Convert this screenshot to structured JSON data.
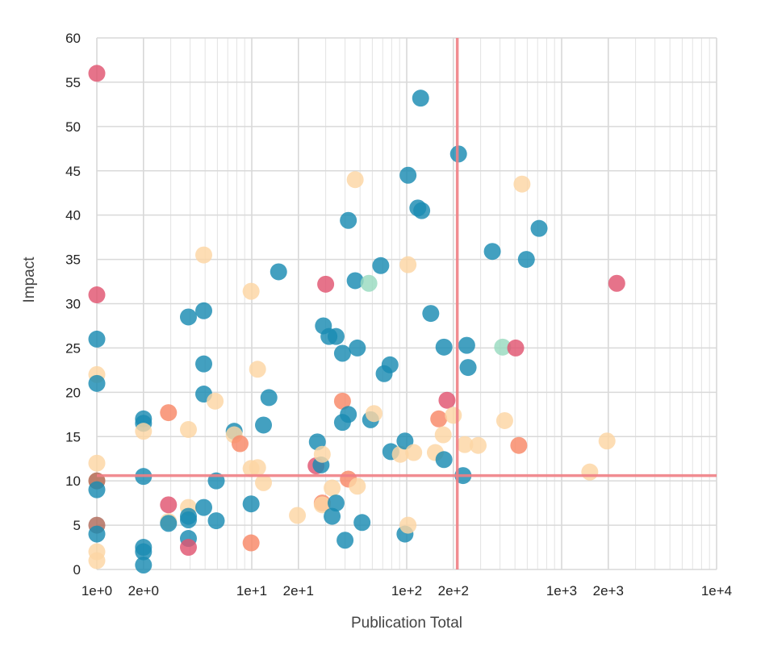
{
  "chart_data": {
    "type": "scatter",
    "xlabel": "Publication Total",
    "ylabel": "Impact",
    "x_scale": "log",
    "xlim": [
      1,
      10000
    ],
    "ylim": [
      0,
      60
    ],
    "x_ticks": [
      1,
      2,
      10,
      20,
      100,
      200,
      1000,
      2000,
      10000
    ],
    "x_tick_labels": [
      "1e+0",
      "2e+0",
      "1e+1",
      "2e+1",
      "1e+2",
      "2e+2",
      "1e+3",
      "2e+3",
      "1e+4"
    ],
    "y_ticks": [
      0,
      5,
      10,
      15,
      20,
      25,
      30,
      35,
      40,
      45,
      50,
      55,
      60
    ],
    "y_tick_labels": [
      "0",
      "5",
      "10",
      "15",
      "20",
      "25",
      "30",
      "35",
      "40",
      "45",
      "50",
      "55",
      "60"
    ],
    "grid": true,
    "reference_lines": {
      "x": 212,
      "y": 10.6,
      "color": "#f07f85"
    },
    "colors": {
      "blue": "#1a8bb2",
      "peach": "#fdd6a4",
      "coral": "#f88866",
      "red": "#e15470",
      "mint": "#99dbc0",
      "brown": "#b06a5a"
    },
    "points": [
      {
        "x": 1,
        "y": 56,
        "c": "red"
      },
      {
        "x": 1,
        "y": 31,
        "c": "red"
      },
      {
        "x": 1,
        "y": 26,
        "c": "blue"
      },
      {
        "x": 1,
        "y": 22,
        "c": "peach"
      },
      {
        "x": 1,
        "y": 21,
        "c": "blue"
      },
      {
        "x": 1,
        "y": 12,
        "c": "peach"
      },
      {
        "x": 1,
        "y": 10,
        "c": "peach"
      },
      {
        "x": 1,
        "y": 10,
        "c": "brown"
      },
      {
        "x": 1,
        "y": 9,
        "c": "blue"
      },
      {
        "x": 1,
        "y": 5,
        "c": "brown"
      },
      {
        "x": 1,
        "y": 4,
        "c": "blue"
      },
      {
        "x": 1,
        "y": 2,
        "c": "peach"
      },
      {
        "x": 1,
        "y": 1,
        "c": "peach"
      },
      {
        "x": 2,
        "y": 17,
        "c": "blue"
      },
      {
        "x": 2,
        "y": 16.5,
        "c": "blue"
      },
      {
        "x": 2,
        "y": 15.6,
        "c": "peach"
      },
      {
        "x": 2,
        "y": 10.5,
        "c": "blue"
      },
      {
        "x": 2,
        "y": 2.5,
        "c": "blue"
      },
      {
        "x": 2,
        "y": 2,
        "c": "blue"
      },
      {
        "x": 2,
        "y": 0.5,
        "c": "blue"
      },
      {
        "x": 2.9,
        "y": 17.7,
        "c": "coral"
      },
      {
        "x": 2.9,
        "y": 7.3,
        "c": "red"
      },
      {
        "x": 2.9,
        "y": 5.4,
        "c": "peach"
      },
      {
        "x": 2.9,
        "y": 5.2,
        "c": "blue"
      },
      {
        "x": 3.9,
        "y": 28.5,
        "c": "blue"
      },
      {
        "x": 3.9,
        "y": 15.8,
        "c": "peach"
      },
      {
        "x": 3.9,
        "y": 7,
        "c": "peach"
      },
      {
        "x": 3.9,
        "y": 6,
        "c": "blue"
      },
      {
        "x": 3.9,
        "y": 5.6,
        "c": "blue"
      },
      {
        "x": 3.9,
        "y": 3.5,
        "c": "blue"
      },
      {
        "x": 3.9,
        "y": 2.5,
        "c": "red"
      },
      {
        "x": 4.9,
        "y": 35.5,
        "c": "peach"
      },
      {
        "x": 4.9,
        "y": 29.2,
        "c": "blue"
      },
      {
        "x": 4.9,
        "y": 23.2,
        "c": "blue"
      },
      {
        "x": 4.9,
        "y": 19.8,
        "c": "blue"
      },
      {
        "x": 4.9,
        "y": 7,
        "c": "blue"
      },
      {
        "x": 5.8,
        "y": 19,
        "c": "peach"
      },
      {
        "x": 5.9,
        "y": 10,
        "c": "blue"
      },
      {
        "x": 5.9,
        "y": 5.5,
        "c": "blue"
      },
      {
        "x": 7.7,
        "y": 15.6,
        "c": "blue"
      },
      {
        "x": 7.7,
        "y": 15.2,
        "c": "peach"
      },
      {
        "x": 8.4,
        "y": 14.2,
        "c": "coral"
      },
      {
        "x": 9.9,
        "y": 31.4,
        "c": "peach"
      },
      {
        "x": 9.9,
        "y": 11.4,
        "c": "peach"
      },
      {
        "x": 9.9,
        "y": 7.4,
        "c": "blue"
      },
      {
        "x": 9.9,
        "y": 3,
        "c": "coral"
      },
      {
        "x": 10.9,
        "y": 22.6,
        "c": "peach"
      },
      {
        "x": 10.9,
        "y": 11.5,
        "c": "peach"
      },
      {
        "x": 11.9,
        "y": 16.3,
        "c": "blue"
      },
      {
        "x": 11.9,
        "y": 9.8,
        "c": "peach"
      },
      {
        "x": 12.9,
        "y": 19.4,
        "c": "blue"
      },
      {
        "x": 14.9,
        "y": 33.6,
        "c": "blue"
      },
      {
        "x": 19.7,
        "y": 6.1,
        "c": "peach"
      },
      {
        "x": 26,
        "y": 11.7,
        "c": "red"
      },
      {
        "x": 26.5,
        "y": 14.4,
        "c": "blue"
      },
      {
        "x": 28,
        "y": 11.8,
        "c": "blue"
      },
      {
        "x": 28.5,
        "y": 13,
        "c": "peach"
      },
      {
        "x": 28.5,
        "y": 7.5,
        "c": "coral"
      },
      {
        "x": 28.5,
        "y": 7.3,
        "c": "peach"
      },
      {
        "x": 29,
        "y": 27.5,
        "c": "blue"
      },
      {
        "x": 30,
        "y": 32.2,
        "c": "red"
      },
      {
        "x": 31.5,
        "y": 26.3,
        "c": "blue"
      },
      {
        "x": 33,
        "y": 9.2,
        "c": "peach"
      },
      {
        "x": 33,
        "y": 6,
        "c": "blue"
      },
      {
        "x": 35,
        "y": 26.3,
        "c": "blue"
      },
      {
        "x": 35,
        "y": 7.5,
        "c": "blue"
      },
      {
        "x": 38.5,
        "y": 24.4,
        "c": "blue"
      },
      {
        "x": 38.5,
        "y": 19,
        "c": "coral"
      },
      {
        "x": 38.5,
        "y": 16.6,
        "c": "blue"
      },
      {
        "x": 40,
        "y": 3.3,
        "c": "blue"
      },
      {
        "x": 42,
        "y": 39.4,
        "c": "blue"
      },
      {
        "x": 42,
        "y": 17.5,
        "c": "blue"
      },
      {
        "x": 42,
        "y": 10.2,
        "c": "coral"
      },
      {
        "x": 46.5,
        "y": 44,
        "c": "peach"
      },
      {
        "x": 46.5,
        "y": 32.6,
        "c": "blue"
      },
      {
        "x": 48,
        "y": 25,
        "c": "blue"
      },
      {
        "x": 48,
        "y": 9.4,
        "c": "peach"
      },
      {
        "x": 51.5,
        "y": 5.3,
        "c": "blue"
      },
      {
        "x": 57,
        "y": 32.3,
        "c": "mint"
      },
      {
        "x": 58.5,
        "y": 16.9,
        "c": "blue"
      },
      {
        "x": 61.5,
        "y": 17.6,
        "c": "peach"
      },
      {
        "x": 68,
        "y": 34.3,
        "c": "blue"
      },
      {
        "x": 71.5,
        "y": 22.1,
        "c": "blue"
      },
      {
        "x": 78,
        "y": 23.1,
        "c": "blue"
      },
      {
        "x": 79,
        "y": 13.3,
        "c": "blue"
      },
      {
        "x": 91,
        "y": 13,
        "c": "peach"
      },
      {
        "x": 97.5,
        "y": 14.5,
        "c": "blue"
      },
      {
        "x": 97.5,
        "y": 4,
        "c": "blue"
      },
      {
        "x": 102,
        "y": 44.5,
        "c": "blue"
      },
      {
        "x": 102,
        "y": 34.4,
        "c": "peach"
      },
      {
        "x": 102,
        "y": 5,
        "c": "peach"
      },
      {
        "x": 111,
        "y": 13.2,
        "c": "peach"
      },
      {
        "x": 118,
        "y": 40.8,
        "c": "blue"
      },
      {
        "x": 123,
        "y": 53.2,
        "c": "blue"
      },
      {
        "x": 125,
        "y": 40.5,
        "c": "blue"
      },
      {
        "x": 143,
        "y": 28.9,
        "c": "blue"
      },
      {
        "x": 153,
        "y": 13.2,
        "c": "peach"
      },
      {
        "x": 161,
        "y": 17,
        "c": "coral"
      },
      {
        "x": 172,
        "y": 15.2,
        "c": "peach"
      },
      {
        "x": 174,
        "y": 25.1,
        "c": "blue"
      },
      {
        "x": 174,
        "y": 12.4,
        "c": "blue"
      },
      {
        "x": 182,
        "y": 19.1,
        "c": "red"
      },
      {
        "x": 200,
        "y": 17.4,
        "c": "peach"
      },
      {
        "x": 216,
        "y": 46.9,
        "c": "blue"
      },
      {
        "x": 231,
        "y": 10.6,
        "c": "blue"
      },
      {
        "x": 237,
        "y": 14.1,
        "c": "peach"
      },
      {
        "x": 244,
        "y": 25.3,
        "c": "blue"
      },
      {
        "x": 249,
        "y": 22.8,
        "c": "blue"
      },
      {
        "x": 289,
        "y": 14,
        "c": "peach"
      },
      {
        "x": 357,
        "y": 35.9,
        "c": "blue"
      },
      {
        "x": 416,
        "y": 25.1,
        "c": "mint"
      },
      {
        "x": 429,
        "y": 16.8,
        "c": "peach"
      },
      {
        "x": 505,
        "y": 25,
        "c": "red"
      },
      {
        "x": 529,
        "y": 14,
        "c": "coral"
      },
      {
        "x": 555,
        "y": 43.5,
        "c": "peach"
      },
      {
        "x": 592,
        "y": 35,
        "c": "blue"
      },
      {
        "x": 715,
        "y": 38.5,
        "c": "blue"
      },
      {
        "x": 1519,
        "y": 11,
        "c": "peach"
      },
      {
        "x": 1962,
        "y": 14.5,
        "c": "peach"
      },
      {
        "x": 2269,
        "y": 32.3,
        "c": "red"
      }
    ]
  }
}
